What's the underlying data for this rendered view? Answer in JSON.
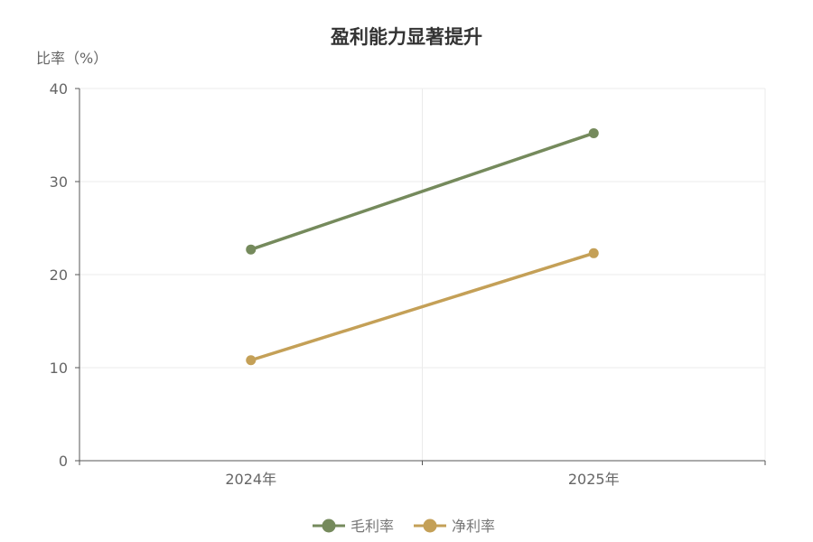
{
  "chart_data": {
    "type": "line",
    "title": "盈利能力显著提升",
    "ylabel": "比率（%）",
    "xlabel": "",
    "categories": [
      "2024年",
      "2025年"
    ],
    "ylim": [
      0,
      40
    ],
    "yticks": [
      0,
      10,
      20,
      30,
      40
    ],
    "grid": true,
    "legend_position": "bottom-center",
    "series": [
      {
        "name": "毛利率",
        "values": [
          22.7,
          35.2
        ],
        "color": "#758a5c"
      },
      {
        "name": "净利率",
        "values": [
          10.8,
          22.3
        ],
        "color": "#c4a057"
      }
    ]
  }
}
